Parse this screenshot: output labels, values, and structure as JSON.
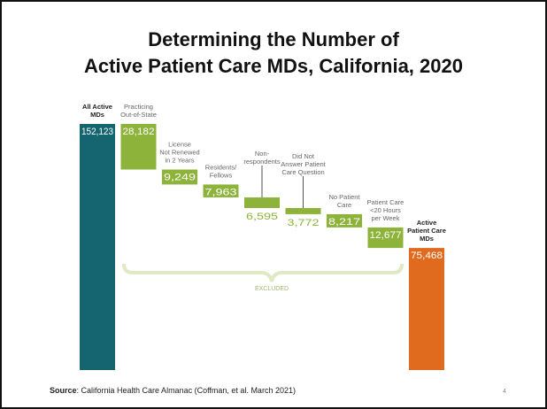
{
  "chart_data": {
    "type": "waterfall",
    "title": [
      "Determining the Number of",
      "Active Patient Care MDs, California, 2020"
    ],
    "categories": [
      [
        "All Active",
        "MDs"
      ],
      [
        "Practicing",
        "Out-of-State"
      ],
      [
        "License",
        "Not Renewed",
        "in 2 Years"
      ],
      [
        "Residents/",
        "Fellows"
      ],
      [
        "Non-",
        "respondents"
      ],
      [
        "Did Not",
        "Answer Patient",
        "Care Question"
      ],
      [
        "No Patient",
        "Care"
      ],
      [
        "Patient Care",
        "<20 Hours",
        "per Week"
      ],
      [
        "Active",
        "Patient Care",
        "MDs"
      ]
    ],
    "values": [
      152123,
      28182,
      9249,
      7963,
      6595,
      3772,
      8217,
      12677,
      75468
    ],
    "value_labels": [
      "152,123",
      "28,182",
      "9,249",
      "7,963",
      "6,595",
      "3,772",
      "8,217",
      "12,677",
      "75,468"
    ],
    "kinds": [
      "total",
      "decrease",
      "decrease",
      "decrease",
      "decrease",
      "decrease",
      "decrease",
      "decrease",
      "total"
    ],
    "colors": {
      "start": "#156570",
      "decrease": "#8db33a",
      "end": "#e06b1f"
    },
    "annotation": "EXCLUDED",
    "source_label": "Source",
    "source_text": ": California Health Care Almanac (Coffman, et al. March 2021)",
    "page_number": "4"
  }
}
